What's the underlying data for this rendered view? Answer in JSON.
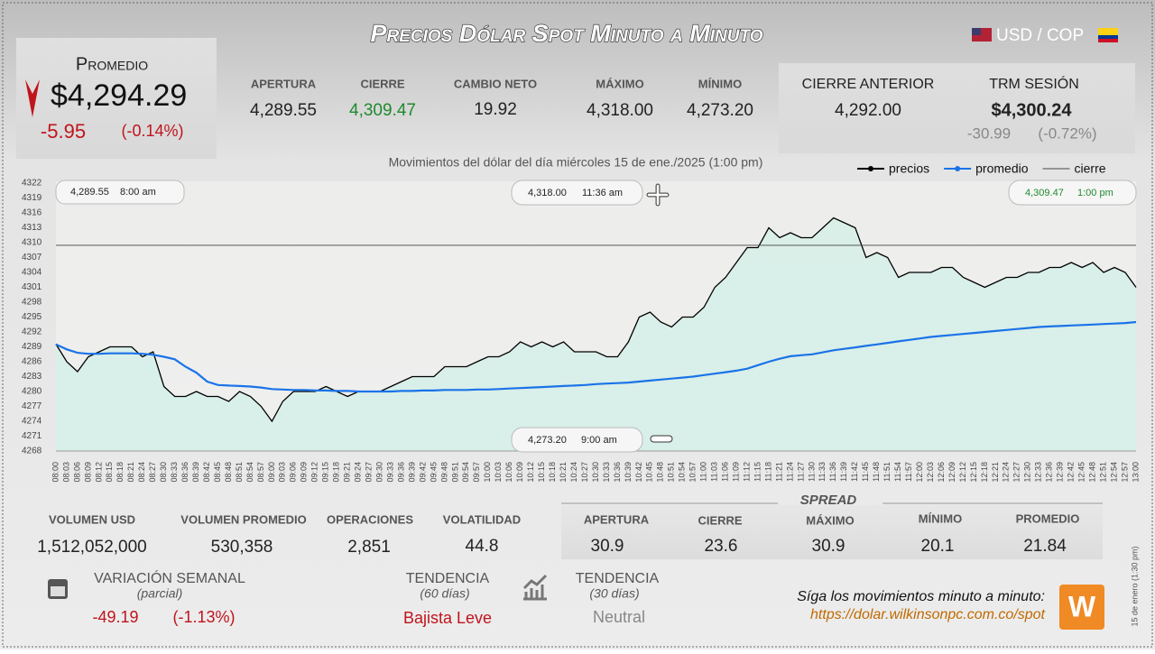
{
  "header": {
    "title": "Precios Dólar Spot Minuto a Minuto",
    "pair": "USD / COP"
  },
  "average": {
    "label": "Promedio",
    "value": "$4,294.29",
    "change": "-5.95",
    "change_pct": "(-0.14%)"
  },
  "session": [
    {
      "label": "APERTURA",
      "value": "4,289.55"
    },
    {
      "label": "CIERRE",
      "value": "4,309.47"
    },
    {
      "label": "CAMBIO NETO",
      "value": "19.92"
    },
    {
      "label": "MÁXIMO",
      "value": "4,318.00"
    },
    {
      "label": "MÍNIMO",
      "value": "4,273.20"
    }
  ],
  "previous_close": {
    "label": "CIERRE ANTERIOR",
    "value": "4,292.00"
  },
  "trm": {
    "label": "TRM SESIÓN",
    "value": "$4,300.24",
    "change": "-30.99",
    "change_pct": "(-0.72%)"
  },
  "chart_data": {
    "type": "line",
    "subtitle": "Movimientos del dólar del día miércoles 15 de ene./2025 (1:00 pm)",
    "categories": [
      "08:00",
      "08:03",
      "08:06",
      "08:09",
      "08:12",
      "08:15",
      "08:18",
      "08:21",
      "08:24",
      "08:27",
      "08:30",
      "08:33",
      "08:36",
      "08:39",
      "08:42",
      "08:45",
      "08:48",
      "08:51",
      "08:54",
      "08:57",
      "09:00",
      "09:03",
      "09:06",
      "09:09",
      "09:12",
      "09:15",
      "09:18",
      "09:21",
      "09:24",
      "09:27",
      "09:30",
      "09:33",
      "09:36",
      "09:39",
      "09:42",
      "09:45",
      "09:48",
      "09:51",
      "09:54",
      "09:57",
      "10:00",
      "10:03",
      "10:06",
      "10:09",
      "10:12",
      "10:15",
      "10:18",
      "10:21",
      "10:24",
      "10:27",
      "10:30",
      "10:33",
      "10:36",
      "10:39",
      "10:42",
      "10:45",
      "10:48",
      "10:51",
      "10:54",
      "10:57",
      "11:00",
      "11:03",
      "11:06",
      "11:09",
      "11:12",
      "11:15",
      "11:18",
      "11:21",
      "11:24",
      "11:27",
      "11:30",
      "11:33",
      "11:36",
      "11:39",
      "11:42",
      "11:45",
      "11:48",
      "11:51",
      "11:54",
      "11:57",
      "12:00",
      "12:03",
      "12:06",
      "12:09",
      "12:12",
      "12:15",
      "12:18",
      "12:21",
      "12:24",
      "12:27",
      "12:30",
      "12:33",
      "12:36",
      "12:39",
      "12:42",
      "12:45",
      "12:48",
      "12:51",
      "12:54",
      "12:57",
      "13:00"
    ],
    "series": [
      {
        "name": "precios",
        "color": "#000000",
        "area_color": "#d5efe8",
        "values": [
          4289.55,
          4286,
          4284,
          4287,
          4288,
          4289,
          4289,
          4289,
          4287,
          4288,
          4281,
          4279,
          4279,
          4280,
          4279,
          4279,
          4278,
          4280,
          4279,
          4277,
          4274,
          4278,
          4280,
          4280,
          4280,
          4281,
          4280,
          4279,
          4280,
          4280,
          4280,
          4281,
          4282,
          4283,
          4283,
          4283,
          4285,
          4285,
          4285,
          4286,
          4287,
          4287,
          4288,
          4290,
          4289,
          4290,
          4289,
          4290,
          4288,
          4288,
          4288,
          4287,
          4287,
          4290,
          4295,
          4296,
          4294,
          4293,
          4295,
          4295,
          4297,
          4301,
          4303,
          4306,
          4309,
          4309,
          4313,
          4311,
          4312,
          4311,
          4311,
          4313,
          4315,
          4314,
          4313,
          4307,
          4308,
          4307,
          4303,
          4304,
          4304,
          4304,
          4305,
          4305,
          4303,
          4302,
          4301,
          4302,
          4303,
          4303,
          4304,
          4304,
          4305,
          4305,
          4306,
          4305,
          4306,
          4304,
          4305,
          4304,
          4301
        ]
      },
      {
        "name": "promedio",
        "color": "#1a73e8",
        "values": [
          4289.5,
          4288.5,
          4287.8,
          4287.6,
          4287.6,
          4287.7,
          4287.7,
          4287.7,
          4287.6,
          4287.4,
          4287,
          4286.5,
          4285,
          4283.8,
          4282,
          4281.3,
          4281.2,
          4281.1,
          4281,
          4280.8,
          4280.5,
          4280.4,
          4280.3,
          4280.3,
          4280.2,
          4280.2,
          4280.1,
          4280.1,
          4280,
          4280,
          4280,
          4280,
          4280.1,
          4280.1,
          4280.2,
          4280.2,
          4280.3,
          4280.3,
          4280.3,
          4280.4,
          4280.4,
          4280.5,
          4280.6,
          4280.7,
          4280.8,
          4280.9,
          4281,
          4281.1,
          4281.2,
          4281.3,
          4281.5,
          4281.6,
          4281.7,
          4281.8,
          4282,
          4282.2,
          4282.4,
          4282.6,
          4282.8,
          4283,
          4283.3,
          4283.6,
          4283.9,
          4284.2,
          4284.6,
          4285.3,
          4286,
          4286.6,
          4287.1,
          4287.3,
          4287.5,
          4287.9,
          4288.3,
          4288.6,
          4288.9,
          4289.2,
          4289.5,
          4289.8,
          4290.1,
          4290.4,
          4290.7,
          4291,
          4291.2,
          4291.4,
          4291.6,
          4291.8,
          4292,
          4292.2,
          4292.4,
          4292.6,
          4292.8,
          4293,
          4293.1,
          4293.2,
          4293.3,
          4293.4,
          4293.5,
          4293.6,
          4293.7,
          4293.8,
          4294
        ]
      },
      {
        "name": "cierre",
        "color": "#444444",
        "level": 4309.47
      }
    ],
    "ylim": [
      4268,
      4322
    ],
    "yticks": [
      4268,
      4271,
      4274,
      4277,
      4280,
      4283,
      4286,
      4289,
      4292,
      4295,
      4298,
      4301,
      4304,
      4307,
      4310,
      4313,
      4316,
      4319,
      4322
    ],
    "grid": false,
    "annotations": [
      {
        "value": "4,289.55",
        "time": "8:00 am"
      },
      {
        "value": "4,318.00",
        "time": "11:36 am"
      },
      {
        "value": "4,309.47",
        "time": "1:00 pm"
      },
      {
        "value": "4,273.20",
        "time": "9:00 am"
      }
    ]
  },
  "volume": [
    {
      "label": "VOLUMEN USD",
      "value": "1,512,052,000"
    },
    {
      "label": "VOLUMEN PROMEDIO",
      "value": "530,358"
    },
    {
      "label": "OPERACIONES",
      "value": "2,851"
    },
    {
      "label": "VOLATILIDAD",
      "value": "44.8"
    }
  ],
  "spread": {
    "title": "SPREAD",
    "items": [
      {
        "label": "APERTURA",
        "value": "30.9"
      },
      {
        "label": "CIERRE",
        "value": "23.6"
      },
      {
        "label": "MÁXIMO",
        "value": "30.9"
      },
      {
        "label": "MÍNIMO",
        "value": "20.1"
      },
      {
        "label": "PROMEDIO",
        "value": "21.84"
      }
    ]
  },
  "weekly": {
    "label": "VARIACIÓN SEMANAL",
    "note": "(parcial)",
    "change": "-49.19",
    "change_pct": "(-1.13%)"
  },
  "trend_60": {
    "label": "TENDENCIA",
    "note": "(60 días)",
    "value": "Bajista Leve"
  },
  "trend_30": {
    "label": "TENDENCIA",
    "note": "(30 días)",
    "value": "Neutral"
  },
  "footer": {
    "follow": "Síga los movimientos minuto a minuto:",
    "url": "https://dolar.wilkinsonpc.com.co/spot",
    "stamp": "15 de enero (1:30 pm)",
    "logo": "W"
  }
}
